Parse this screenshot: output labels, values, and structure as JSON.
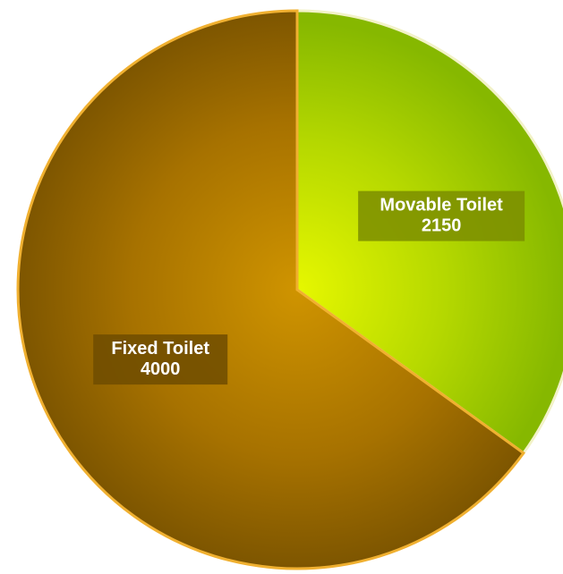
{
  "chart_data": {
    "type": "pie",
    "categories": [
      "Movable Toilet",
      "Fixed Toilet"
    ],
    "values": [
      2150,
      4000
    ],
    "title": "",
    "colors": {
      "Movable Toilet": "#c8e000",
      "Fixed Toilet": "#b07a00"
    },
    "labels_show_value": true
  }
}
